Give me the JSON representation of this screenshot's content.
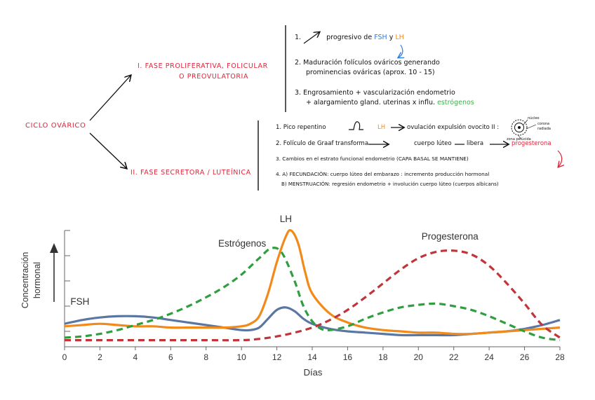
{
  "mindmap": {
    "root": "CICLO OVÁRICO",
    "phase1": {
      "line1": "I. FASE PROLIFERATIVA, FOLICULAR",
      "line2": "O PREOVULATORIA"
    },
    "phase2": {
      "label": "II. FASE SECRETORA / LUTEÍNICA"
    },
    "p1_notes": {
      "n1_a": "1.",
      "n1_b": "progresivo de",
      "n1_fsh": "FSH",
      "n1_y": "y",
      "n1_lh": "LH",
      "n2_line1": "2. Maduración folículos ováricos generando",
      "n2_line2": "prominencias ováricas (aprox. 10 - 15)",
      "n3_line1": "3. Engrosamiento + vascularización endometrio",
      "n3_line2_a": "+ alargamiento gland. uterinas x influ.",
      "n3_line2_b": "estrógenos"
    },
    "p2_notes": {
      "n1_a": "1. Pico repentino",
      "n1_lh": "LH",
      "n1_b": "ovulación expulsión ovocito II :",
      "n2_a": "2. Folículo de Graaf transforma",
      "n2_b": "cuerpo lúteo",
      "n2_c": "libera",
      "n2_prog": "progesterona",
      "n3": "3. Cambios en el estrato funcional endometrio (CAPA BASAL SE MANTIENE)",
      "n4_a": "4. A) FECUNDACIÓN: cuerpo lúteo del embarazo : incremento producción hormonal",
      "n4_b": "B) MENSTRUACIÓN: regresión endometrio + involución cuerpo lúteo (cuerpos albicans)"
    },
    "oocyte_labels": {
      "l1": "núcleo",
      "l2": "zona pelúcida",
      "l3": "corona",
      "l4": "radiada"
    },
    "colors": {
      "red": "#e0253a",
      "orange": "#f28a1a",
      "blue": "#2f7fe0",
      "green": "#3fb04a"
    }
  },
  "chart_data": {
    "type": "line",
    "xlabel": "Días",
    "ylabel": "Concentración hormonal",
    "xlim": [
      0,
      28
    ],
    "ylim": [
      0,
      100
    ],
    "xticks": [
      0,
      2,
      4,
      6,
      8,
      10,
      12,
      14,
      16,
      18,
      20,
      22,
      24,
      26,
      28
    ],
    "grid": false,
    "series": [
      {
        "name": "FSH",
        "color": "#5a77a3",
        "dash": false,
        "x": [
          0,
          1,
          2,
          3,
          4,
          5,
          6,
          7,
          8,
          9,
          10,
          10.5,
          11,
          11.5,
          12,
          12.5,
          13,
          13.5,
          14,
          15,
          16,
          17,
          18,
          19,
          20,
          21,
          22,
          23,
          24,
          25,
          26,
          27,
          28
        ],
        "y": [
          16,
          19,
          21,
          22,
          22,
          21,
          19,
          17,
          15,
          13,
          11,
          11,
          13,
          20,
          27,
          29,
          26,
          20,
          16,
          12,
          10,
          9,
          8,
          7,
          7,
          7,
          7,
          8,
          9,
          10,
          12,
          15,
          19
        ]
      },
      {
        "name": "LH",
        "color": "#f28a1a",
        "dash": false,
        "x": [
          0,
          1,
          2,
          3,
          4,
          5,
          6,
          7,
          8,
          9,
          10,
          10.5,
          11,
          11.5,
          12,
          12.5,
          12.8,
          13.2,
          13.6,
          14,
          15,
          16,
          17,
          18,
          19,
          20,
          21,
          22,
          23,
          24,
          25,
          26,
          27,
          28
        ],
        "y": [
          14,
          15,
          16,
          15,
          14,
          14,
          13,
          13,
          13,
          13,
          14,
          16,
          22,
          40,
          65,
          85,
          90,
          80,
          57,
          40,
          24,
          17,
          13,
          11,
          10,
          9,
          9,
          8,
          8,
          9,
          10,
          11,
          12,
          13
        ]
      },
      {
        "name": "Estrógenos",
        "color": "#2e9e3f",
        "dash": true,
        "x": [
          0,
          1,
          2,
          3,
          4,
          5,
          6,
          7,
          8,
          9,
          10,
          11,
          11.7,
          12.3,
          13,
          13.5,
          14,
          14.5,
          15,
          16,
          17,
          18,
          19,
          20,
          21,
          22,
          23,
          24,
          25,
          26,
          27,
          28
        ],
        "y": [
          5,
          6,
          8,
          11,
          15,
          19,
          24,
          30,
          37,
          45,
          55,
          68,
          76,
          72,
          50,
          30,
          18,
          12,
          11,
          14,
          20,
          25,
          29,
          31,
          32,
          30,
          27,
          22,
          16,
          10,
          5,
          3
        ]
      },
      {
        "name": "Progesterona",
        "color": "#c0353a",
        "dash": true,
        "x": [
          0,
          2,
          4,
          6,
          8,
          10,
          11,
          12,
          13,
          14,
          15,
          16,
          17,
          18,
          19,
          20,
          21,
          22,
          23,
          24,
          25,
          26,
          27,
          28
        ],
        "y": [
          3,
          3,
          3,
          3,
          3,
          3,
          4,
          6,
          9,
          13,
          19,
          27,
          37,
          48,
          59,
          68,
          73,
          74,
          71,
          62,
          48,
          32,
          15,
          5
        ]
      }
    ]
  }
}
